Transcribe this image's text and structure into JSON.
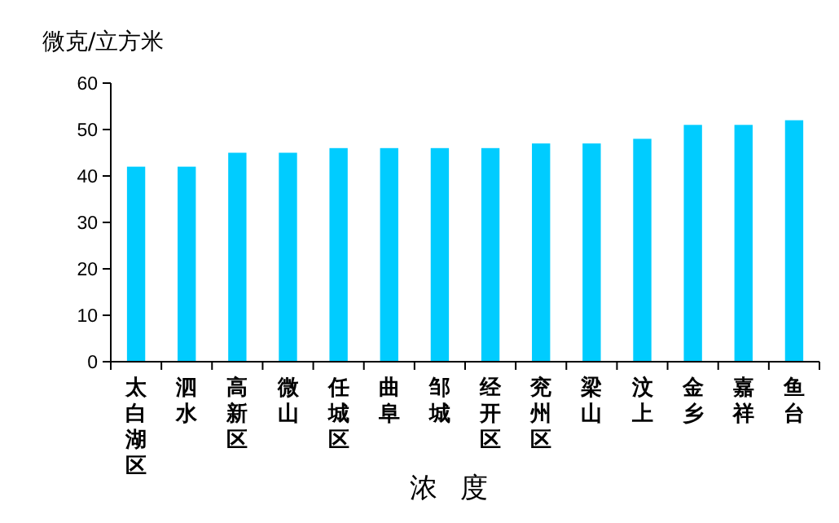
{
  "chart_data": {
    "type": "bar",
    "xlabel": "浓度",
    "ylabel": "微克/立方米",
    "categories": [
      "太白湖区",
      "泗水",
      "高新区",
      "微山",
      "任城区",
      "曲阜",
      "邹城",
      "经开区",
      "兖州区",
      "梁山",
      "汶上",
      "金乡",
      "嘉祥",
      "鱼台"
    ],
    "values": [
      42,
      42,
      45,
      45,
      46,
      46,
      46,
      46,
      47,
      47,
      48,
      51,
      51,
      52
    ],
    "color": "#00ccff",
    "ylim": [
      0,
      60
    ],
    "yticks": [
      0,
      10,
      20,
      30,
      40,
      50,
      60
    ],
    "grid": false
  }
}
